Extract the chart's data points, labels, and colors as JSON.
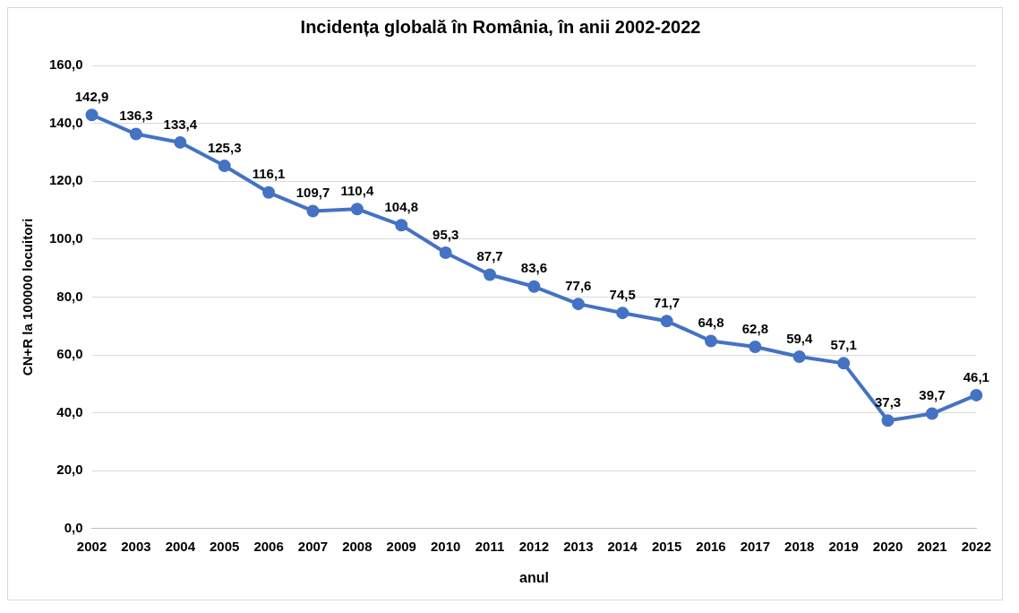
{
  "chart_data": {
    "type": "line",
    "title": "Incidența globală în România, în anii 2002-2022",
    "xlabel": "anul",
    "ylabel": "CN+R la 100000 locuitori",
    "categories": [
      "2002",
      "2003",
      "2004",
      "2005",
      "2006",
      "2007",
      "2008",
      "2009",
      "2010",
      "2011",
      "2012",
      "2013",
      "2014",
      "2015",
      "2016",
      "2017",
      "2018",
      "2019",
      "2020",
      "2021",
      "2022"
    ],
    "values": [
      142.9,
      136.3,
      133.4,
      125.3,
      116.1,
      109.7,
      110.4,
      104.8,
      95.3,
      87.7,
      83.6,
      77.6,
      74.5,
      71.7,
      64.8,
      62.8,
      59.4,
      57.1,
      37.3,
      39.7,
      46.1
    ],
    "value_labels": [
      "142,9",
      "136,3",
      "133,4",
      "125,3",
      "116,1",
      "109,7",
      "110,4",
      "104,8",
      "95,3",
      "87,7",
      "83,6",
      "77,6",
      "74,5",
      "71,7",
      "64,8",
      "62,8",
      "59,4",
      "57,1",
      "37,3",
      "39,7",
      "46,1"
    ],
    "color": "#4472c4",
    "marker": "circle",
    "line_style": "solid",
    "grid": "y",
    "legend": false,
    "ylim": [
      0,
      160
    ],
    "yticks": [
      {
        "value": 0,
        "label": "0,0"
      },
      {
        "value": 20,
        "label": "20,0"
      },
      {
        "value": 40,
        "label": "40,0"
      },
      {
        "value": 60,
        "label": "60,0"
      },
      {
        "value": 80,
        "label": "80,0"
      },
      {
        "value": 100,
        "label": "100,0"
      },
      {
        "value": 120,
        "label": "120,0"
      },
      {
        "value": 140,
        "label": "140,0"
      },
      {
        "value": 160,
        "label": "160,0"
      }
    ]
  }
}
